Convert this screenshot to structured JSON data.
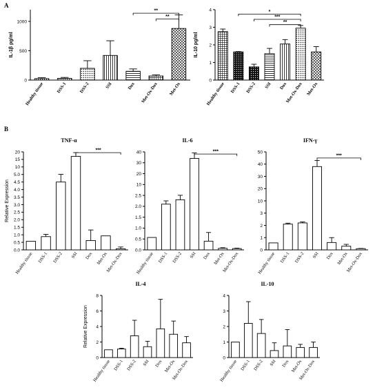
{
  "panels": {
    "a": "A",
    "b": "B"
  },
  "chart_data": [
    {
      "id": "il1b",
      "type": "bar",
      "title": "",
      "panel": "A",
      "ylabel": "IL-1β pg/ml",
      "ylim": [
        0,
        1200
      ],
      "yticks": [
        0,
        500,
        1000
      ],
      "categories": [
        "Healthy tissue",
        "DSS-1",
        "DSS-2",
        "SSI",
        "Dox",
        "Met-Ox-Dox",
        "Met-Ox"
      ],
      "bold_labels": true,
      "values": [
        25,
        30,
        200,
        420,
        150,
        70,
        880
      ],
      "errors": [
        15,
        15,
        130,
        250,
        40,
        20,
        230
      ],
      "patterns": [
        "pattern-vlines",
        "pattern-vlines",
        "pattern-dots",
        "pattern-vlines",
        "pattern-hlines",
        "pattern-grid",
        "pattern-diagonal"
      ],
      "annotations": [
        {
          "from": 4,
          "to": 6,
          "label": "**",
          "level": 1140
        },
        {
          "from": 5,
          "to": 6,
          "label": "**",
          "level": 1040
        }
      ]
    },
    {
      "id": "il10a",
      "type": "bar",
      "title": "",
      "panel": "A",
      "ylabel": "IL-10 pg/ml",
      "ylim": [
        0,
        4
      ],
      "yticks": [
        0,
        1,
        2,
        3,
        4
      ],
      "categories": [
        "Healthy tissue",
        "DSS-1",
        "DSS-2",
        "SSI",
        "Dox",
        "Met-Ox-Dox",
        "Met-Ox"
      ],
      "bold_labels": true,
      "values": [
        2.75,
        1.6,
        0.75,
        1.5,
        2.05,
        2.95,
        1.6
      ],
      "errors": [
        0.15,
        0.02,
        0.15,
        0.3,
        0.25,
        0.15,
        0.3
      ],
      "patterns": [
        "pattern-grid",
        "pattern-black-dots",
        "pattern-black-dots",
        "pattern-hlines",
        "pattern-vlines",
        "pattern-dots",
        "pattern-diagonal"
      ],
      "annotations": [
        {
          "from": 1,
          "to": 5,
          "label": "*",
          "level": 3.75
        },
        {
          "from": 2,
          "to": 5,
          "label": "***",
          "level": 3.45
        },
        {
          "from": 3,
          "to": 5,
          "label": "**",
          "level": 3.15
        }
      ]
    },
    {
      "id": "tnf",
      "type": "bar",
      "title": "TNF-α",
      "panel": "B",
      "ylabel": "Relative Expression",
      "ylim": [
        0,
        20
      ],
      "yticks": [
        0,
        0.5,
        1.0,
        1.5,
        2.0,
        2.5,
        3.0,
        3.5,
        4.0,
        4.5,
        5.0,
        10,
        15,
        20
      ],
      "ytick_labels": [
        "0.0",
        "0.5",
        "1.0",
        "1.5",
        "2.0",
        "2.5",
        "3.0",
        "3.5",
        "4.0",
        "4.5",
        "5.0",
        "10",
        "15",
        "20"
      ],
      "categories": [
        "Healthy tissue",
        "DSS-1",
        "DSS-2",
        "SSI",
        "Dox",
        "Met-Ox",
        "Met-Ox-Dox"
      ],
      "bold_labels": false,
      "values": [
        0.57,
        0.88,
        4.5,
        17,
        0.62,
        0.93,
        0.07
      ],
      "errors": [
        0,
        0.15,
        0.6,
        2.5,
        0.7,
        0,
        0.12
      ],
      "annotations": [
        {
          "from": 3,
          "to": 6,
          "label": "***",
          "level": 19.5
        }
      ]
    },
    {
      "id": "il6",
      "type": "bar",
      "title": "IL-6",
      "panel": "B",
      "ylabel": "",
      "ylim": [
        0,
        40
      ],
      "yticks": [
        0,
        0.5,
        1.0,
        1.5,
        2.0,
        2.5,
        10,
        20,
        30,
        40
      ],
      "ytick_labels": [
        "0.0",
        "0.5",
        "1.0",
        "1.5",
        "2.0",
        "2.5",
        "10",
        "20",
        "30",
        "40"
      ],
      "categories": [
        "Healthy tissue",
        "DSS-1",
        "DSS-2",
        "SSI",
        "Dox",
        "Met-Ox",
        "Met-Ox-Dox"
      ],
      "bold_labels": false,
      "values": [
        0.57,
        2.1,
        2.3,
        34,
        0.4,
        0.07,
        0.06
      ],
      "errors": [
        0,
        0.15,
        0.3,
        5,
        0.4,
        0.03,
        0.02
      ],
      "annotations": [
        {
          "from": 3,
          "to": 6,
          "label": "***",
          "level": 38
        }
      ]
    },
    {
      "id": "ifng",
      "type": "bar",
      "title": "IFN-γ",
      "panel": "B",
      "ylabel": "",
      "ylim": [
        0,
        50
      ],
      "yticks": [
        0,
        1,
        2,
        3,
        10,
        20,
        30,
        40,
        50
      ],
      "ytick_labels": [
        "0",
        "1",
        "2",
        "3",
        "10",
        "20",
        "30",
        "40",
        "50"
      ],
      "categories": [
        "Healthy tissue",
        "DSS-1",
        "DSS-2",
        "SSI",
        "Dox",
        "Met-Ox",
        "Met-Ox-Dox"
      ],
      "bold_labels": false,
      "values": [
        0.57,
        2.1,
        2.2,
        38,
        0.6,
        0.3,
        0.1
      ],
      "errors": [
        0,
        0.08,
        0.08,
        5,
        0.4,
        0.15,
        0.02
      ],
      "annotations": [
        {
          "from": 3,
          "to": 6,
          "label": "***",
          "level": 45
        }
      ]
    },
    {
      "id": "il4",
      "type": "bar",
      "title": "IL-4",
      "panel": "B",
      "ylabel": "Relative Expression",
      "ylim": [
        0,
        8
      ],
      "yticks": [
        0,
        2,
        4,
        6,
        8
      ],
      "categories": [
        "Healthy tissue",
        "DSS-1",
        "DSS-2",
        "SSI",
        "Dox",
        "Met-Ox",
        "Met-Ox-Dox"
      ],
      "bold_labels": false,
      "values": [
        1.0,
        1.1,
        2.8,
        1.4,
        3.7,
        3.0,
        1.9
      ],
      "errors": [
        0,
        0.1,
        2.0,
        0.7,
        3.8,
        1.7,
        0.8
      ],
      "annotations": []
    },
    {
      "id": "il10b",
      "type": "bar",
      "title": "IL-10",
      "panel": "B",
      "ylabel": "",
      "ylim": [
        0,
        4
      ],
      "yticks": [
        0,
        1,
        2,
        3,
        4
      ],
      "categories": [
        "Healthy tissue",
        "DSS-1",
        "DSS-2",
        "SSI",
        "Dox",
        "Met-Ox",
        "Met-Ox-Dox"
      ],
      "bold_labels": false,
      "values": [
        1.0,
        2.2,
        1.55,
        0.45,
        0.75,
        0.65,
        0.65
      ],
      "errors": [
        0,
        1.4,
        0.9,
        0.5,
        1.05,
        0.2,
        0.35
      ],
      "annotations": []
    }
  ]
}
